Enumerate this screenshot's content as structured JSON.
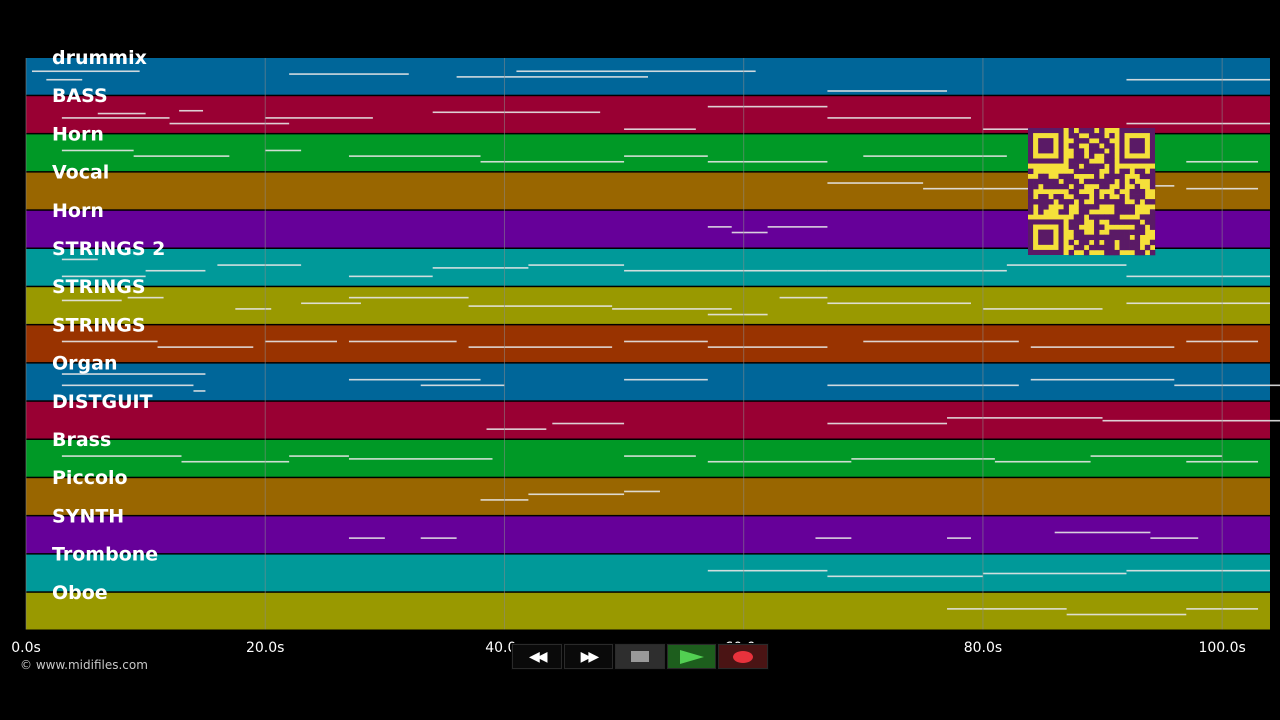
{
  "tracks": [
    {
      "name": "drummix",
      "color": "#006699"
    },
    {
      "name": "BASS",
      "color": "#990033"
    },
    {
      "name": "Horn",
      "color": "#009926"
    },
    {
      "name": "Vocal",
      "color": "#996600"
    },
    {
      "name": "Horn",
      "color": "#660099"
    },
    {
      "name": "STRINGS 2",
      "color": "#009999"
    },
    {
      "name": "STRINGS",
      "color": "#999900"
    },
    {
      "name": "STRINGS",
      "color": "#993300"
    },
    {
      "name": "Organ",
      "color": "#006699"
    },
    {
      "name": "DISTGUIT",
      "color": "#990033"
    },
    {
      "name": "Brass",
      "color": "#009926"
    },
    {
      "name": "Piccolo",
      "color": "#996600"
    },
    {
      "name": "SYNTH",
      "color": "#660099"
    },
    {
      "name": "Trombone",
      "color": "#009999"
    },
    {
      "name": "Oboe",
      "color": "#999900"
    }
  ],
  "timeline": {
    "start_seconds": 0,
    "end_seconds": 104,
    "ticks": [
      {
        "value": 0,
        "label": "0.0s"
      },
      {
        "value": 20,
        "label": "20.0s"
      },
      {
        "value": 40,
        "label": "40.0s"
      },
      {
        "value": 60,
        "label": "60.0s"
      },
      {
        "value": 80,
        "label": "80.0s"
      },
      {
        "value": 100,
        "label": "100.0s"
      }
    ],
    "gridline_color": "#8a8a8a"
  },
  "copyright": "© www.midifiles.com",
  "qr_code": {
    "color_fg": "#5a1a66",
    "color_bg": "#f5e03a"
  },
  "transport": {
    "rewind": {
      "icon": "rewind-icon",
      "symbol": "◀◀"
    },
    "fast_forward": {
      "icon": "fast-forward-icon",
      "symbol": "▶▶"
    },
    "stop": {
      "icon": "stop-icon"
    },
    "play": {
      "icon": "play-icon"
    },
    "record": {
      "icon": "record-icon"
    }
  },
  "note_segments": [
    [
      [
        0.5,
        9,
        0.3
      ],
      [
        1.7,
        3,
        0.6
      ],
      [
        6,
        4,
        1.8
      ],
      [
        12.8,
        2,
        1.7
      ],
      [
        22,
        10,
        0.4
      ],
      [
        36,
        16,
        0.5
      ],
      [
        41,
        20,
        0.3
      ],
      [
        67,
        10,
        1.0
      ],
      [
        92,
        12,
        0.6
      ]
    ],
    [
      [
        3,
        9,
        0.6
      ],
      [
        12,
        10,
        0.8
      ],
      [
        20,
        9,
        0.6
      ],
      [
        34,
        14,
        0.4
      ],
      [
        50,
        6,
        1.0
      ],
      [
        57,
        10,
        0.2
      ],
      [
        67,
        12,
        0.6
      ],
      [
        80,
        10,
        1.0
      ],
      [
        92,
        12,
        0.8
      ]
    ],
    [
      [
        3,
        6,
        0.4
      ],
      [
        9,
        8,
        0.6
      ],
      [
        20,
        3,
        0.4
      ],
      [
        27,
        11,
        0.6
      ],
      [
        38,
        12,
        0.8
      ],
      [
        50,
        7,
        0.6
      ],
      [
        57,
        10,
        0.8
      ],
      [
        70,
        12,
        0.6
      ],
      [
        84,
        10,
        0.8
      ],
      [
        97,
        6,
        0.8
      ]
    ],
    [
      [
        67,
        8,
        0.2
      ],
      [
        75,
        13,
        0.4
      ],
      [
        88,
        8,
        0.3
      ],
      [
        97,
        6,
        0.4
      ]
    ],
    [
      [
        57,
        2,
        0.4
      ],
      [
        59,
        3,
        0.6
      ],
      [
        62,
        5,
        0.4
      ]
    ],
    [
      [
        3,
        3,
        0.2
      ],
      [
        3,
        7,
        0.8
      ],
      [
        10,
        5,
        0.6
      ],
      [
        16,
        7,
        0.4
      ],
      [
        27,
        7,
        0.8
      ],
      [
        34,
        8,
        0.5
      ],
      [
        42,
        8,
        0.4
      ],
      [
        50,
        17,
        0.6
      ],
      [
        67,
        15,
        0.6
      ],
      [
        82,
        10,
        0.4
      ],
      [
        92,
        12,
        0.8
      ]
    ],
    [
      [
        3,
        5,
        0.3
      ],
      [
        8.5,
        3,
        0.2
      ],
      [
        17.5,
        3,
        0.6
      ],
      [
        23,
        5,
        0.4
      ],
      [
        27,
        10,
        0.2
      ],
      [
        37,
        12,
        0.5
      ],
      [
        49,
        10,
        0.6
      ],
      [
        57,
        5,
        0.8
      ],
      [
        63,
        4,
        0.2
      ],
      [
        67,
        12,
        0.4
      ],
      [
        80,
        10,
        0.6
      ],
      [
        92,
        12,
        0.4
      ]
    ],
    [
      [
        3,
        8,
        0.4
      ],
      [
        11,
        8,
        0.6
      ],
      [
        20,
        6,
        0.4
      ],
      [
        27,
        9,
        0.4
      ],
      [
        37,
        12,
        0.6
      ],
      [
        50,
        7,
        0.4
      ],
      [
        57,
        10,
        0.6
      ],
      [
        70,
        13,
        0.4
      ],
      [
        84,
        12,
        0.6
      ],
      [
        97,
        6,
        0.4
      ]
    ],
    [
      [
        3,
        12,
        0.2
      ],
      [
        3,
        11,
        0.6
      ],
      [
        14,
        1,
        0.8
      ],
      [
        27,
        11,
        0.4
      ],
      [
        33,
        7,
        0.6
      ],
      [
        50,
        7,
        0.4
      ],
      [
        67,
        16,
        0.6
      ],
      [
        84,
        12,
        0.4
      ],
      [
        96,
        10,
        0.6
      ]
    ],
    [
      [
        38.5,
        5,
        0.8
      ],
      [
        44,
        6,
        0.6
      ],
      [
        67,
        10,
        0.6
      ],
      [
        77,
        13,
        0.4
      ],
      [
        90,
        16,
        0.5
      ]
    ],
    [
      [
        3,
        10,
        0.4
      ],
      [
        13,
        9,
        0.6
      ],
      [
        22,
        5,
        0.4
      ],
      [
        27,
        12,
        0.5
      ],
      [
        50,
        6,
        0.4
      ],
      [
        57,
        12,
        0.6
      ],
      [
        69,
        12,
        0.5
      ],
      [
        81,
        8,
        0.6
      ],
      [
        89,
        11,
        0.4
      ],
      [
        97,
        6,
        0.6
      ]
    ],
    [
      [
        38,
        4,
        0.6
      ],
      [
        42,
        8,
        0.4
      ],
      [
        50,
        3,
        0.3
      ]
    ],
    [
      [
        27,
        3,
        0.6
      ],
      [
        33,
        3,
        0.6
      ],
      [
        66,
        3,
        0.6
      ],
      [
        77,
        2,
        0.6
      ],
      [
        86,
        8,
        0.4
      ],
      [
        94,
        4,
        0.6
      ]
    ],
    [
      [
        57,
        10,
        0.4
      ],
      [
        67,
        13,
        0.6
      ],
      [
        80,
        12,
        0.5
      ],
      [
        92,
        12,
        0.4
      ]
    ],
    [
      [
        77,
        10,
        0.4
      ],
      [
        87,
        10,
        0.6
      ],
      [
        97,
        6,
        0.4
      ]
    ]
  ]
}
